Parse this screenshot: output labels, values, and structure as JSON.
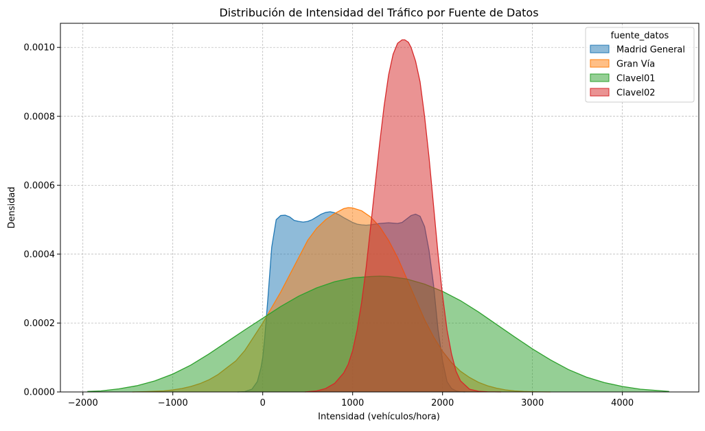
{
  "chart_data": {
    "type": "area",
    "title": "Distribución de Intensidad del Tráfico por Fuente de Datos",
    "xlabel": "Intensidad (vehículos/hora)",
    "ylabel": "Densidad",
    "xlim": [
      -2250,
      4850
    ],
    "ylim": [
      0,
      0.00107
    ],
    "xticks": [
      -2000,
      -1000,
      0,
      1000,
      2000,
      3000,
      4000
    ],
    "xtick_labels": [
      "−2000",
      "−1000",
      "0",
      "1000",
      "2000",
      "3000",
      "4000"
    ],
    "yticks": [
      0,
      0.0002,
      0.0004,
      0.0006,
      0.0008,
      0.001
    ],
    "ytick_labels": [
      "0.0000",
      "0.0002",
      "0.0004",
      "0.0006",
      "0.0008",
      "0.0010"
    ],
    "grid": true,
    "legend": {
      "title": "fuente_datos",
      "placement": "top-right"
    },
    "series": [
      {
        "name": "Madrid General",
        "color": "#1f77b4",
        "fill_opacity": 0.5,
        "x": [
          -280,
          -200,
          -120,
          -60,
          -20,
          0,
          20,
          60,
          100,
          150,
          200,
          250,
          300,
          350,
          400,
          450,
          500,
          550,
          600,
          650,
          700,
          750,
          800,
          850,
          900,
          950,
          1000,
          1050,
          1100,
          1150,
          1200,
          1250,
          1300,
          1350,
          1400,
          1450,
          1500,
          1550,
          1600,
          1650,
          1700,
          1750,
          1800,
          1850,
          1900,
          1950,
          2000,
          2050,
          2100,
          2150,
          2200,
          2250
        ],
        "y": [
          0,
          1e-06,
          8e-06,
          3e-05,
          7e-05,
          0.0001,
          0.00015,
          0.00028,
          0.00042,
          0.0005,
          0.000512,
          0.000513,
          0.000508,
          0.000498,
          0.000495,
          0.000493,
          0.000495,
          0.0005,
          0.000508,
          0.000516,
          0.000521,
          0.000523,
          0.00052,
          0.000514,
          0.000506,
          0.000499,
          0.000492,
          0.000487,
          0.000485,
          0.000484,
          0.000485,
          0.000487,
          0.000489,
          0.00049,
          0.000491,
          0.00049,
          0.000489,
          0.000492,
          0.000502,
          0.000512,
          0.000516,
          0.00051,
          0.00048,
          0.00041,
          0.00031,
          0.00018,
          9e-05,
          3e-05,
          1e-05,
          3e-06,
          5e-07,
          0
        ]
      },
      {
        "name": "Gran Vía",
        "color": "#ff7f0e",
        "fill_opacity": 0.5,
        "x": [
          -1450,
          -1300,
          -1200,
          -1100,
          -1000,
          -900,
          -800,
          -700,
          -600,
          -500,
          -400,
          -300,
          -200,
          -100,
          0,
          100,
          200,
          300,
          400,
          500,
          600,
          700,
          800,
          900,
          950,
          1000,
          1100,
          1200,
          1300,
          1400,
          1500,
          1600,
          1700,
          1800,
          1900,
          2000,
          2100,
          2200,
          2300,
          2400,
          2500,
          2600,
          2700,
          2800,
          2900,
          3000,
          3100,
          3200
        ],
        "y": [
          0,
          1e-06,
          2e-06,
          3e-06,
          6e-06,
          1e-05,
          1.6e-05,
          2.4e-05,
          3.5e-05,
          5e-05,
          7e-05,
          9e-05,
          0.00012,
          0.00016,
          0.0002,
          0.000245,
          0.00029,
          0.00034,
          0.00039,
          0.00044,
          0.000475,
          0.0005,
          0.000518,
          0.000532,
          0.000535,
          0.000534,
          0.000526,
          0.000508,
          0.00048,
          0.00044,
          0.00039,
          0.00033,
          0.00027,
          0.00021,
          0.00016,
          0.000118,
          8.5e-05,
          6e-05,
          4.2e-05,
          2.8e-05,
          1.8e-05,
          1.1e-05,
          6e-06,
          3e-06,
          1.5e-06,
          8e-07,
          3e-07,
          0
        ]
      },
      {
        "name": "Clavel01",
        "color": "#2ca02c",
        "fill_opacity": 0.5,
        "x": [
          -1950,
          -1800,
          -1600,
          -1400,
          -1200,
          -1000,
          -800,
          -600,
          -400,
          -200,
          0,
          200,
          400,
          600,
          800,
          1000,
          1200,
          1300,
          1400,
          1600,
          1800,
          2000,
          2200,
          2400,
          2600,
          2800,
          3000,
          3200,
          3400,
          3600,
          3800,
          4000,
          4200,
          4400,
          4520
        ],
        "y": [
          1.5e-06,
          3e-06,
          9e-06,
          1.8e-05,
          3.2e-05,
          5.2e-05,
          7.8e-05,
          0.00011,
          0.000145,
          0.00018,
          0.000214,
          0.000248,
          0.000278,
          0.000302,
          0.00032,
          0.000331,
          0.000335,
          0.000336,
          0.000335,
          0.000328,
          0.000313,
          0.000292,
          0.000265,
          0.000232,
          0.000196,
          0.00016,
          0.000125,
          9.3e-05,
          6.5e-05,
          4.3e-05,
          2.7e-05,
          1.6e-05,
          8e-06,
          4e-06,
          1.5e-06
        ]
      },
      {
        "name": "Clavel02",
        "color": "#d62728",
        "fill_opacity": 0.5,
        "x": [
          470,
          600,
          700,
          800,
          900,
          950,
          1000,
          1050,
          1100,
          1150,
          1200,
          1250,
          1300,
          1350,
          1400,
          1450,
          1500,
          1550,
          1580,
          1620,
          1650,
          1700,
          1750,
          1800,
          1850,
          1900,
          1950,
          2000,
          2050,
          2100,
          2150,
          2200,
          2300,
          2400,
          2500,
          2650
        ],
        "y": [
          0,
          3e-06,
          1e-05,
          2.5e-05,
          5.5e-05,
          8e-05,
          0.00012,
          0.00018,
          0.00026,
          0.00036,
          0.00048,
          0.0006,
          0.00072,
          0.00083,
          0.00092,
          0.00098,
          0.001012,
          0.001022,
          0.001022,
          0.001015,
          0.001,
          0.00096,
          0.0009,
          0.0008,
          0.00068,
          0.00054,
          0.0004,
          0.00028,
          0.00018,
          0.00011,
          6e-05,
          3.2e-05,
          8e-06,
          2e-06,
          5e-07,
          0
        ]
      }
    ]
  }
}
